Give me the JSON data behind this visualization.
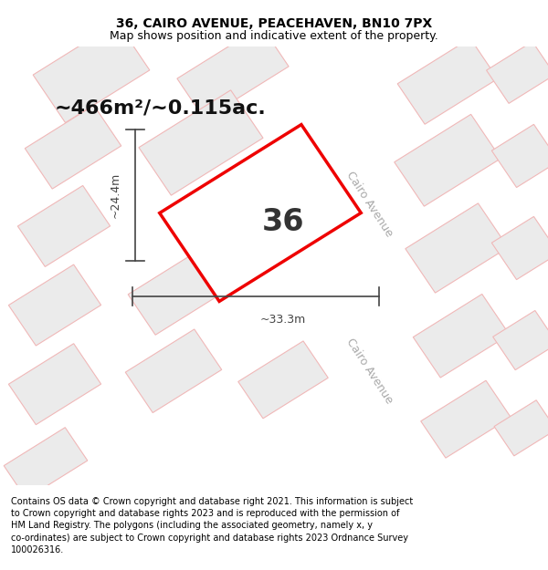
{
  "title": "36, CAIRO AVENUE, PEACEHAVEN, BN10 7PX",
  "subtitle": "Map shows position and indicative extent of the property.",
  "footer": "Contains OS data © Crown copyright and database right 2021. This information is subject to Crown copyright and database rights 2023 and is reproduced with the permission of HM Land Registry. The polygons (including the associated geometry, namely x, y co-ordinates) are subject to Crown copyright and database rights 2023 Ordnance Survey 100026316.",
  "area_label": "~466m²/~0.115ac.",
  "number_label": "36",
  "dim_width": "~33.3m",
  "dim_height": "~24.4m",
  "map_bg": "#ffffff",
  "building_face": "#ebebeb",
  "building_edge": "#f0b8b8",
  "road_color": "#ffffff",
  "plot_edge": "#ee0000",
  "plot_face": "#ffffff",
  "street_label": "Cairo Avenue",
  "street_color": "#aaaaaa",
  "dim_color": "#444444",
  "title_fontsize": 10,
  "subtitle_fontsize": 9,
  "footer_fontsize": 7,
  "area_fontsize": 16,
  "num_fontsize": 24,
  "dim_fontsize": 9
}
